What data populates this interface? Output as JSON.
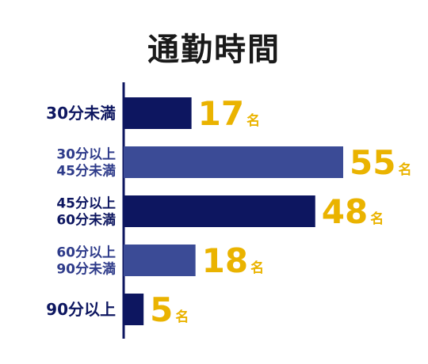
{
  "colors": {
    "bar_dark": "#0d1660",
    "bar_light": "#3b4b96",
    "label_dark": "#0d1660",
    "label_light": "#2e3b8a",
    "value": "#eab300",
    "axis": "#0d1660"
  },
  "chart_data": {
    "type": "bar",
    "orientation": "horizontal",
    "title": "通勤時間",
    "categories": [
      [
        "30分未満"
      ],
      [
        "30分以上",
        "45分未満"
      ],
      [
        "45分以上",
        "60分未満"
      ],
      [
        "60分以上",
        "90分未満"
      ],
      [
        "90分以上"
      ]
    ],
    "values": [
      17,
      55,
      48,
      18,
      5
    ],
    "unit": "名",
    "xlim": [
      0,
      55
    ],
    "grid": false,
    "legend": "none"
  }
}
